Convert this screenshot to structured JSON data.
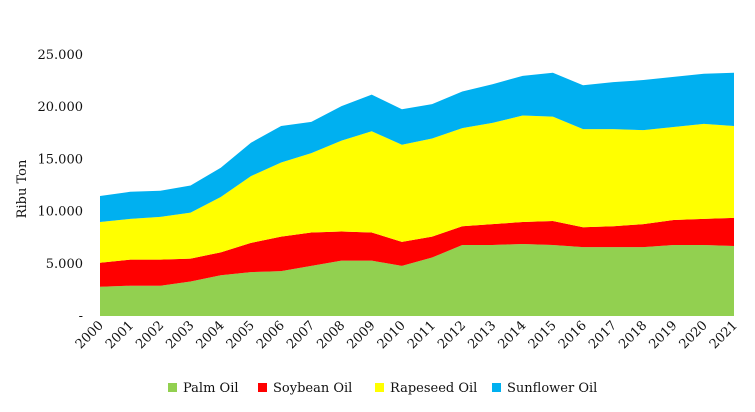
{
  "chart_data": {
    "type": "area",
    "stacked": true,
    "title": "",
    "xlabel": "",
    "ylabel": "Ribu Ton",
    "ylim": [
      0,
      25000
    ],
    "y_ticks": [
      0,
      5000,
      10000,
      15000,
      20000,
      25000
    ],
    "y_tick_labels": [
      "-",
      "5.000",
      "10.000",
      "15.000",
      "20.000",
      "25.000"
    ],
    "categories": [
      "2000",
      "2001",
      "2002",
      "2003",
      "2004",
      "2005",
      "2006",
      "2007",
      "2008",
      "2009",
      "2010",
      "2011",
      "2012",
      "2013",
      "2014",
      "2015",
      "2016",
      "2017",
      "2018",
      "2019",
      "2020",
      "2021"
    ],
    "series": [
      {
        "name": "Palm Oil",
        "color": "#92d050",
        "values": [
          2800,
          2900,
          2900,
          3300,
          3900,
          4200,
          4300,
          4800,
          5300,
          5300,
          4800,
          5600,
          6800,
          6800,
          6900,
          6800,
          6600,
          6600,
          6600,
          6800,
          6800,
          6700
        ]
      },
      {
        "name": "Soybean Oil",
        "color": "#ff0000",
        "values": [
          2300,
          2500,
          2500,
          2200,
          2200,
          2800,
          3300,
          3200,
          2800,
          2700,
          2300,
          2000,
          1800,
          2000,
          2100,
          2300,
          1900,
          2000,
          2200,
          2400,
          2500,
          2700
        ]
      },
      {
        "name": "Rapeseed Oil",
        "color": "#ffff00",
        "values": [
          3900,
          3900,
          4100,
          4400,
          5300,
          6400,
          7100,
          7600,
          8700,
          9700,
          9300,
          9400,
          9400,
          9700,
          10200,
          10000,
          9400,
          9300,
          9000,
          8900,
          9100,
          8800
        ]
      },
      {
        "name": "Sunflower Oil",
        "color": "#00b0f0",
        "values": [
          2500,
          2600,
          2500,
          2600,
          2800,
          3200,
          3500,
          3000,
          3300,
          3500,
          3400,
          3300,
          3500,
          3700,
          3800,
          4200,
          4200,
          4500,
          4800,
          4800,
          4800,
          5100
        ]
      }
    ],
    "legend_position": "bottom"
  }
}
